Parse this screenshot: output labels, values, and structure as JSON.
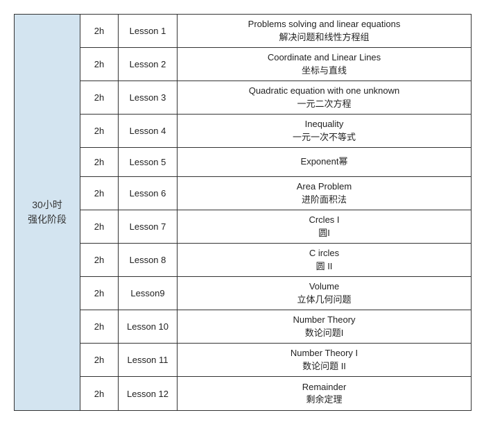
{
  "table": {
    "border_color": "#333333",
    "stage": {
      "line1": "30小时",
      "line2": "强化阶段",
      "bg_color": "#d3e4f0",
      "fontsize": 14,
      "text_color": "#333333"
    },
    "columns": {
      "duration_width": 55,
      "lesson_width": 85
    },
    "row_fontsize": 13,
    "row_text_color": "#222222",
    "rows": [
      {
        "duration": "2h",
        "lesson": "Lesson 1",
        "topic_en": "Problems solving and linear equations",
        "topic_zh": "解决问题和线性方程组"
      },
      {
        "duration": "2h",
        "lesson": "Lesson 2",
        "topic_en": "Coordinate and Linear Lines",
        "topic_zh": "坐标与直线"
      },
      {
        "duration": "2h",
        "lesson": "Lesson 3",
        "topic_en": "Quadratic equation with one unknown",
        "topic_zh": "一元二次方程"
      },
      {
        "duration": "2h",
        "lesson": "Lesson 4",
        "topic_en": "Inequality",
        "topic_zh": "一元一次不等式"
      },
      {
        "duration": "2h",
        "lesson": "Lesson 5",
        "topic_en": "Exponent幂",
        "topic_zh": ""
      },
      {
        "duration": "2h",
        "lesson": "Lesson 6",
        "topic_en": "Area Problem",
        "topic_zh": "进阶面积法"
      },
      {
        "duration": "2h",
        "lesson": "Lesson 7",
        "topic_en": "Crcles I",
        "topic_zh": "圆I"
      },
      {
        "duration": "2h",
        "lesson": "Lesson 8",
        "topic_en": "C ircles",
        "topic_zh": "圆  II"
      },
      {
        "duration": "2h",
        "lesson": "Lesson9",
        "topic_en": "Volume",
        "topic_zh": "立体几何问题"
      },
      {
        "duration": "2h",
        "lesson": "Lesson 10",
        "topic_en": "Number Theory",
        "topic_zh": "数论问题I"
      },
      {
        "duration": "2h",
        "lesson": "Lesson 11",
        "topic_en": "Number Theory I",
        "topic_zh": "数论问题 II"
      },
      {
        "duration": "2h",
        "lesson": "Lesson 12",
        "topic_en": "Remainder",
        "topic_zh": "剩余定理"
      }
    ]
  }
}
